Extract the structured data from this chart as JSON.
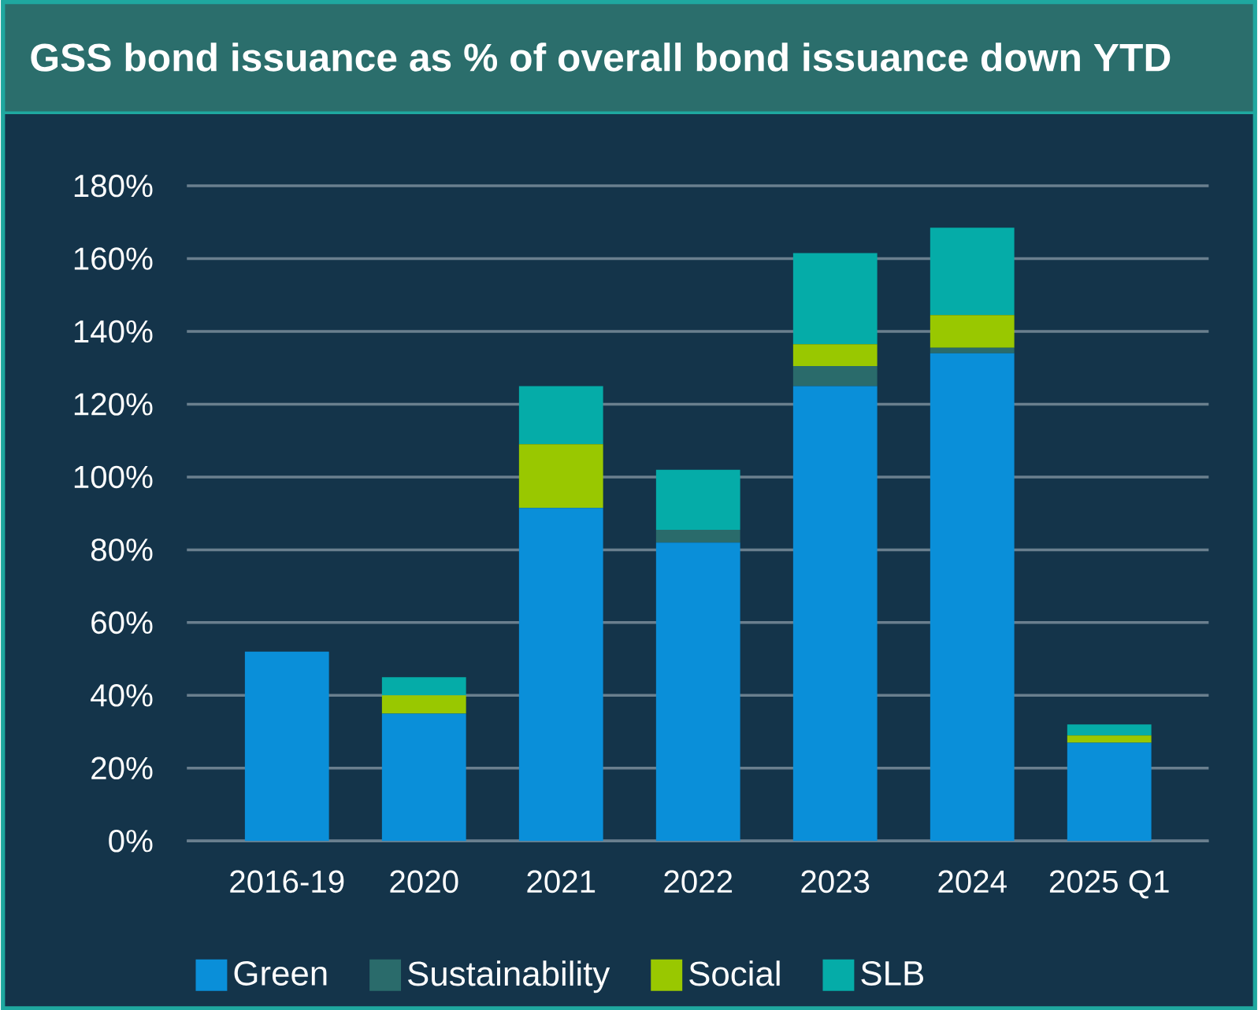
{
  "chart_data": {
    "type": "bar",
    "title": "GSS bond issuance as % of overall bond issuance down YTD",
    "categories": [
      "2016-19",
      "2020",
      "2021",
      "2022",
      "2023",
      "2024",
      "2025 Q1"
    ],
    "stacked": true,
    "series": [
      {
        "name": "Green",
        "color": "#0a8fd9",
        "values": [
          52,
          35,
          91.5,
          82,
          125,
          134,
          27
        ]
      },
      {
        "name": "Sustainability",
        "color": "#2a6b6b",
        "values": [
          0,
          0,
          0,
          3.5,
          5.5,
          1.5,
          0
        ]
      },
      {
        "name": "Social",
        "color": "#99c800",
        "values": [
          0,
          5,
          17.5,
          0,
          6,
          9,
          2
        ]
      },
      {
        "name": "SLB",
        "color": "#05aca8",
        "values": [
          0,
          5,
          16,
          16.5,
          25,
          24,
          3
        ]
      }
    ],
    "ylim": [
      0,
      180
    ],
    "yticks": [
      {
        "value": 0,
        "label": "0%"
      },
      {
        "value": 20,
        "label": "20%"
      },
      {
        "value": 40,
        "label": "40%"
      },
      {
        "value": 60,
        "label": "60%"
      },
      {
        "value": 80,
        "label": "80%"
      },
      {
        "value": 100,
        "label": "100%"
      },
      {
        "value": 120,
        "label": "120%"
      },
      {
        "value": 140,
        "label": "140%"
      },
      {
        "value": 160,
        "label": "160%"
      },
      {
        "value": 180,
        "label": "180%"
      }
    ],
    "grid": "y",
    "legend": "bottom"
  }
}
